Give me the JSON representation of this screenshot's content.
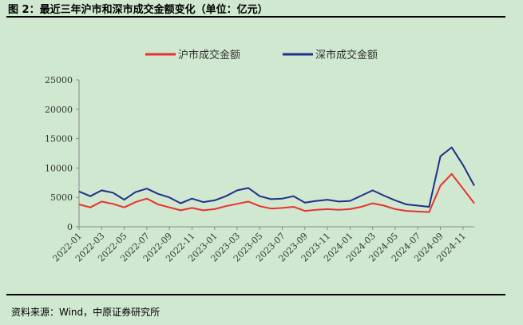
{
  "header": {
    "title": "图 2：最近三年沪市和深市成交金额变化（单位：亿元）"
  },
  "footer": {
    "source": "资料来源：Wind，中原证券研究所"
  },
  "chart_data": {
    "type": "line",
    "title": "",
    "xlabel": "",
    "ylabel": "",
    "ylim": [
      0,
      25000
    ],
    "yticks": [
      "0",
      "5000",
      "10000",
      "15000",
      "20000",
      "25000"
    ],
    "xticks": [
      "2022-01",
      "2022-03",
      "2022-05",
      "2022-07",
      "2022-09",
      "2022-11",
      "2023-01",
      "2023-03",
      "2023-05",
      "2023-07",
      "2023-09",
      "2023-11",
      "2024-01",
      "2024-03",
      "2024-05",
      "2024-07",
      "2024-09",
      "2024-11"
    ],
    "grid": false,
    "legend": "top-center",
    "x": [
      "2022-01",
      "2022-02",
      "2022-03",
      "2022-04",
      "2022-05",
      "2022-06",
      "2022-07",
      "2022-08",
      "2022-09",
      "2022-10",
      "2022-11",
      "2022-12",
      "2023-01",
      "2023-02",
      "2023-03",
      "2023-04",
      "2023-05",
      "2023-06",
      "2023-07",
      "2023-08",
      "2023-09",
      "2023-10",
      "2023-11",
      "2023-12",
      "2024-01",
      "2024-02",
      "2024-03",
      "2024-04",
      "2024-05",
      "2024-06",
      "2024-07",
      "2024-08",
      "2024-09",
      "2024-10",
      "2024-11",
      "2024-12"
    ],
    "series": [
      {
        "name": "沪市成交金额",
        "color": "#e8312f",
        "values": [
          3800,
          3300,
          4300,
          3900,
          3300,
          4200,
          4800,
          3800,
          3300,
          2800,
          3200,
          2800,
          3000,
          3500,
          3900,
          4300,
          3500,
          3100,
          3200,
          3400,
          2700,
          2900,
          3000,
          2900,
          3000,
          3400,
          4000,
          3600,
          3000,
          2700,
          2600,
          2500,
          7000,
          9000,
          6500,
          4000
        ]
      },
      {
        "name": "深市成交金额",
        "color": "#1f2f8c",
        "values": [
          6000,
          5200,
          6200,
          5800,
          4600,
          5900,
          6500,
          5600,
          5000,
          4000,
          4800,
          4200,
          4500,
          5200,
          6200,
          6600,
          5200,
          4700,
          4800,
          5200,
          4100,
          4400,
          4600,
          4300,
          4400,
          5300,
          6200,
          5300,
          4500,
          3800,
          3600,
          3400,
          12000,
          13500,
          10500,
          7000
        ]
      }
    ]
  }
}
